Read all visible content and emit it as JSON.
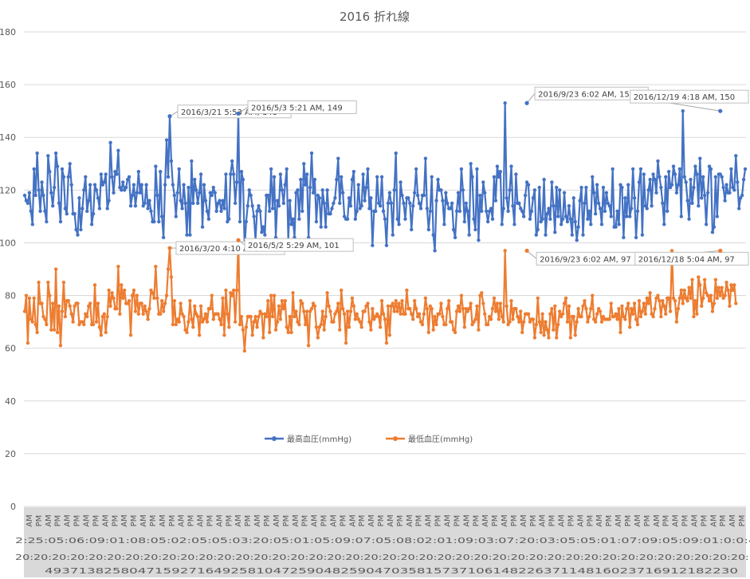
{
  "chart_data": {
    "type": "line",
    "title": "2016 折れ線",
    "xlabel": "",
    "ylabel": "",
    "ylim": [
      0,
      180
    ],
    "y_ticks": [
      0,
      20,
      40,
      60,
      80,
      100,
      120,
      140,
      160,
      180
    ],
    "grid": true,
    "legend_position": "bottom-center",
    "category_axis": {
      "visible_fragments_row1": [
        "AM",
        "PM"
      ],
      "visible_fragments_row2": "2:25:05:06:09:01:08:05:02:05:05:03:20:05:01:05:09:07:05:08:02:01:09:03:07:20:03:05:05:01:07:09:05:09:01:0:0:4",
      "visible_fragments_row3": "20:20:20:20:20:20:20:20:20:20:20:20:20:20:20:20:20:20:20:20:20:20:20:20:20:20:20:20:20:20:20:20:20:20:20:20:20:20:20:20:2",
      "visible_fragments_row4": "4937138258047159271649258104725904825904703581573710614822637114816023716912182230"
    },
    "series": [
      {
        "name": "最高血圧(mmHg)",
        "color": "#4472C4",
        "values": [
          118,
          116,
          115,
          119,
          112,
          107,
          128,
          118,
          134,
          120,
          112,
          123,
          118,
          112,
          108,
          133,
          127,
          119,
          114,
          121,
          134,
          129,
          115,
          108,
          128,
          125,
          113,
          111,
          125,
          130,
          122,
          111,
          111,
          105,
          103,
          117,
          105,
          113,
          120,
          125,
          112,
          116,
          122,
          107,
          111,
          122,
          120,
          117,
          113,
          126,
          122,
          123,
          126,
          113,
          116,
          138,
          125,
          119,
          127,
          126,
          135,
          121,
          120,
          123,
          120,
          121,
          124,
          125,
          114,
          118,
          122,
          114,
          119,
          127,
          119,
          122,
          114,
          115,
          122,
          113,
          116,
          112,
          108,
          108,
          129,
          118,
          108,
          127,
          110,
          102,
          122,
          139,
          125,
          148,
          131,
          122,
          118,
          110,
          119,
          128,
          116,
          113,
          122,
          115,
          103,
          121,
          103,
          131,
          115,
          124,
          120,
          115,
          119,
          126,
          106,
          122,
          116,
          112,
          109,
          119,
          118,
          121,
          119,
          112,
          115,
          116,
          112,
          116,
          113,
          126,
          108,
          109,
          126,
          131,
          126,
          115,
          123,
          149,
          108,
          127,
          124,
          98,
          108,
          114,
          120,
          118,
          114,
          110,
          101,
          112,
          114,
          112,
          104,
          106,
          103,
          118,
          118,
          112,
          128,
          113,
          125,
          102,
          116,
          114,
          126,
          120,
          115,
          122,
          128,
          101,
          116,
          107,
          109,
          102,
          119,
          120,
          109,
          124,
          112,
          130,
          122,
          126,
          102,
          121,
          134,
          119,
          124,
          108,
          118,
          117,
          106,
          120,
          115,
          106,
          120,
          111,
          111,
          113,
          115,
          117,
          124,
          132,
          115,
          125,
          119,
          110,
          109,
          109,
          117,
          114,
          124,
          127,
          109,
          112,
          122,
          113,
          114,
          126,
          116,
          121,
          128,
          113,
          117,
          99,
          112,
          112,
          125,
          115,
          114,
          125,
          112,
          109,
          99,
          115,
          119,
          115,
          103,
          120,
          134,
          109,
          107,
          123,
          118,
          115,
          109,
          117,
          117,
          115,
          105,
          114,
          119,
          128,
          118,
          115,
          113,
          118,
          118,
          132,
          113,
          105,
          112,
          125,
          103,
          97,
          116,
          124,
          120,
          120,
          116,
          107,
          119,
          115,
          113,
          113,
          115,
          105,
          102,
          112,
          119,
          112,
          128,
          120,
          108,
          115,
          112,
          103,
          130,
          125,
          109,
          105,
          128,
          101,
          118,
          112,
          123,
          119,
          112,
          108,
          112,
          113,
          109,
          125,
          116,
          129,
          125,
          127,
          107,
          113,
          153,
          117,
          112,
          120,
          129,
          114,
          107,
          126,
          115,
          115,
          113,
          112,
          110,
          118,
          123,
          122,
          109,
          112,
          117,
          120,
          103,
          105,
          121,
          108,
          109,
          124,
          103,
          111,
          113,
          109,
          123,
          114,
          104,
          121,
          110,
          120,
          107,
          109,
          119,
          110,
          108,
          114,
          109,
          103,
          117,
          108,
          101,
          106,
          116,
          121,
          103,
          115,
          121,
          109,
          112,
          107,
          125,
          119,
          111,
          122,
          115,
          113,
          107,
          121,
          112,
          119,
          115,
          114,
          110,
          128,
          106,
          106,
          112,
          107,
          122,
          121,
          102,
          117,
          110,
          122,
          110,
          113,
          128,
          117,
          102,
          112,
          123,
          128,
          103,
          126,
          114,
          113,
          120,
          124,
          114,
          126,
          124,
          119,
          131,
          125,
          121,
          115,
          107,
          125,
          112,
          127,
          121,
          122,
          129,
          126,
          119,
          122,
          128,
          110,
          150,
          125,
          123,
          116,
          109,
          124,
          115,
          121,
          129,
          126,
          114,
          132,
          117,
          125,
          118,
          107,
          119,
          129,
          128,
          104,
          106,
          125,
          110,
          126,
          126,
          125,
          121,
          116,
          122,
          119,
          119,
          128,
          121,
          120,
          133,
          123,
          113,
          117,
          118,
          124,
          128
        ]
      },
      {
        "name": "最低血圧(mmHg)",
        "color": "#ED7D31",
        "values": [
          74,
          80,
          62,
          79,
          71,
          70,
          79,
          69,
          66,
          85,
          77,
          77,
          72,
          71,
          69,
          85,
          80,
          67,
          77,
          67,
          90,
          66,
          76,
          61,
          74,
          85,
          72,
          78,
          78,
          76,
          73,
          70,
          76,
          77,
          77,
          69,
          70,
          70,
          69,
          73,
          72,
          76,
          77,
          69,
          69,
          84,
          70,
          77,
          68,
          65,
          72,
          73,
          66,
          72,
          82,
          76,
          81,
          79,
          75,
          75,
          91,
          73,
          84,
          79,
          82,
          77,
          77,
          78,
          65,
          80,
          82,
          74,
          80,
          73,
          77,
          77,
          73,
          76,
          74,
          71,
          75,
          82,
          81,
          79,
          91,
          79,
          73,
          73,
          78,
          74,
          77,
          80,
          90,
          98,
          87,
          69,
          78,
          69,
          71,
          70,
          77,
          73,
          72,
          67,
          66,
          70,
          78,
          71,
          68,
          76,
          73,
          72,
          65,
          76,
          70,
          71,
          73,
          70,
          75,
          75,
          80,
          71,
          73,
          73,
          73,
          71,
          69,
          79,
          65,
          82,
          73,
          68,
          81,
          80,
          82,
          70,
          82,
          101,
          69,
          72,
          67,
          59,
          68,
          72,
          72,
          72,
          65,
          70,
          72,
          68,
          72,
          74,
          73,
          64,
          73,
          72,
          78,
          66,
          80,
          72,
          80,
          67,
          70,
          76,
          71,
          78,
          75,
          78,
          68,
          66,
          72,
          66,
          81,
          72,
          74,
          70,
          69,
          78,
          77,
          74,
          69,
          74,
          61,
          74,
          75,
          77,
          76,
          68,
          64,
          68,
          69,
          74,
          67,
          72,
          81,
          76,
          74,
          70,
          70,
          73,
          74,
          77,
          67,
          82,
          75,
          73,
          62,
          74,
          68,
          74,
          79,
          76,
          71,
          73,
          71,
          70,
          68,
          74,
          74,
          76,
          77,
          70,
          67,
          75,
          71,
          72,
          73,
          72,
          68,
          78,
          73,
          71,
          62,
          76,
          65,
          76,
          77,
          74,
          78,
          74,
          77,
          73,
          78,
          73,
          73,
          82,
          75,
          75,
          73,
          71,
          78,
          75,
          72,
          73,
          70,
          69,
          73,
          79,
          75,
          66,
          76,
          75,
          67,
          72,
          69,
          73,
          73,
          77,
          72,
          69,
          69,
          75,
          78,
          70,
          70,
          67,
          66,
          74,
          76,
          74,
          80,
          75,
          68,
          75,
          74,
          75,
          77,
          69,
          70,
          71,
          76,
          67,
          80,
          81,
          77,
          73,
          69,
          69,
          72,
          71,
          75,
          79,
          74,
          77,
          71,
          77,
          72,
          70,
          97,
          76,
          69,
          70,
          78,
          71,
          75,
          75,
          72,
          70,
          74,
          66,
          70,
          73,
          73,
          73,
          70,
          71,
          71,
          64,
          69,
          79,
          70,
          66,
          73,
          65,
          70,
          67,
          64,
          73,
          75,
          67,
          76,
          64,
          69,
          74,
          72,
          73,
          77,
          79,
          70,
          76,
          64,
          72,
          72,
          65,
          70,
          75,
          72,
          72,
          76,
          78,
          75,
          70,
          72,
          75,
          80,
          71,
          70,
          73,
          75,
          74,
          70,
          72,
          71,
          71,
          71,
          71,
          77,
          72,
          72,
          73,
          71,
          75,
          66,
          76,
          72,
          71,
          75,
          77,
          68,
          75,
          73,
          77,
          71,
          69,
          78,
          72,
          74,
          77,
          73,
          79,
          77,
          81,
          73,
          72,
          75,
          79,
          80,
          78,
          72,
          78,
          76,
          73,
          79,
          79,
          74,
          97,
          79,
          78,
          70,
          75,
          79,
          82,
          77,
          82,
          79,
          78,
          83,
          79,
          86,
          72,
          78,
          73,
          87,
          84,
          76,
          79,
          86,
          81,
          80,
          78,
          80,
          74,
          77,
          86,
          79,
          83,
          80,
          83,
          79,
          80,
          85,
          82,
          76,
          84,
          82,
          84,
          77
        ]
      }
    ],
    "annotations": [
      {
        "text": "2016/3/21 5:53 AM, 148",
        "series": 0,
        "index": 93,
        "value": 148
      },
      {
        "text": "2016/5/3 5:21 AM, 149",
        "series": 0,
        "index": 137,
        "value": 149
      },
      {
        "text": "2016/9/23 6:02 AM, 153",
        "series": 0,
        "index": 322,
        "value": 153
      },
      {
        "text": "2016/12/19 4:18 AM, 150",
        "series": 0,
        "index": 446,
        "value": 150
      },
      {
        "text": "2016/3/20 4:10 AM, 98",
        "series": 1,
        "index": 93,
        "value": 98
      },
      {
        "text": "2016/5/2 5:29 AM, 101",
        "series": 1,
        "index": 137,
        "value": 101
      },
      {
        "text": "2016/9/23 6:02 AM, 97",
        "series": 1,
        "index": 322,
        "value": 97
      },
      {
        "text": "2016/12/18 5:04 AM, 97",
        "series": 1,
        "index": 446,
        "value": 97
      }
    ]
  }
}
